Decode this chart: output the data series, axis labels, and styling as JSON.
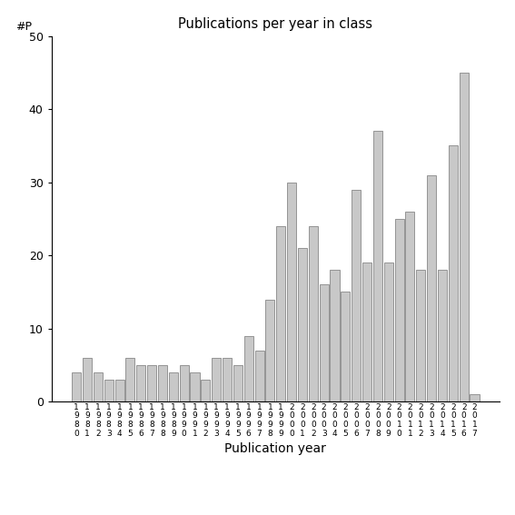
{
  "title": "Publications per year in class",
  "xlabel": "Publication year",
  "ylabel": "#P",
  "bar_color": "#c8c8c8",
  "edge_color": "#888888",
  "background_color": "#ffffff",
  "ylim": [
    0,
    50
  ],
  "yticks": [
    0,
    10,
    20,
    30,
    40,
    50
  ],
  "years": [
    "1980",
    "1981",
    "1982",
    "1983",
    "1984",
    "1985",
    "1986",
    "1987",
    "1988",
    "1989",
    "1990",
    "1991",
    "1992",
    "1993",
    "1994",
    "1995",
    "1996",
    "1997",
    "1998",
    "1999",
    "2000",
    "2001",
    "2002",
    "2003",
    "2004",
    "2005",
    "2006",
    "2007",
    "2008",
    "2009",
    "2010",
    "2011",
    "2012",
    "2013",
    "2014",
    "2015",
    "2016",
    "2017"
  ],
  "values": [
    4,
    6,
    4,
    3,
    3,
    6,
    5,
    5,
    5,
    4,
    5,
    4,
    3,
    6,
    6,
    5,
    9,
    7,
    14,
    24,
    30,
    21,
    24,
    16,
    18,
    15,
    29,
    19,
    37,
    19,
    25,
    26,
    18,
    31,
    18,
    35,
    45,
    1
  ]
}
